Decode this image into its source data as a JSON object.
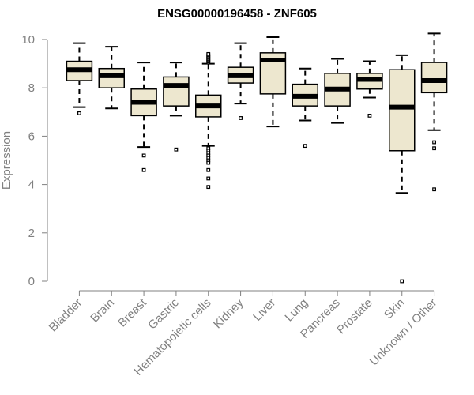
{
  "chart_data": {
    "type": "boxplot",
    "title": "ENSG00000196458 - ZNF605",
    "xlabel": "",
    "ylabel": "Expression",
    "ylim": [
      0,
      10
    ],
    "yticks": [
      0,
      2,
      4,
      6,
      8,
      10
    ],
    "grid": false,
    "colors": {
      "box_fill": "#ede7cf",
      "stroke": "#000000",
      "axis": "#808080",
      "tick_text": "#808080"
    },
    "categories": [
      "Bladder",
      "Brain",
      "Breast",
      "Gastric",
      "Hematopoietic cells",
      "Kidney",
      "Liver",
      "Lung",
      "Pancreas",
      "Prostate",
      "Skin",
      "Unknown / Other"
    ],
    "boxes": [
      {
        "category": "Bladder",
        "whisker_low": 7.2,
        "q1": 8.3,
        "median": 8.75,
        "q3": 9.1,
        "whisker_high": 9.85,
        "outliers": [
          6.95
        ]
      },
      {
        "category": "Brain",
        "whisker_low": 7.15,
        "q1": 8.0,
        "median": 8.5,
        "q3": 8.8,
        "whisker_high": 9.7,
        "outliers": []
      },
      {
        "category": "Breast",
        "whisker_low": 5.55,
        "q1": 6.85,
        "median": 7.4,
        "q3": 7.95,
        "whisker_high": 9.05,
        "outliers": [
          5.2,
          4.6
        ]
      },
      {
        "category": "Gastric",
        "whisker_low": 6.85,
        "q1": 7.25,
        "median": 8.1,
        "q3": 8.45,
        "whisker_high": 9.05,
        "outliers": [
          5.45
        ]
      },
      {
        "category": "Hematopoietic cells",
        "whisker_low": 5.6,
        "q1": 6.8,
        "median": 7.25,
        "q3": 7.7,
        "whisker_high": 9.0,
        "outliers": [
          9.05,
          9.1,
          9.15,
          9.2,
          9.25,
          9.3,
          9.35,
          9.4,
          5.5,
          5.4,
          5.3,
          5.2,
          5.1,
          5.0,
          4.9,
          4.6,
          4.25,
          3.9
        ]
      },
      {
        "category": "Kidney",
        "whisker_low": 7.35,
        "q1": 8.2,
        "median": 8.5,
        "q3": 8.85,
        "whisker_high": 9.85,
        "outliers": [
          6.75
        ]
      },
      {
        "category": "Liver",
        "whisker_low": 6.4,
        "q1": 7.75,
        "median": 9.15,
        "q3": 9.45,
        "whisker_high": 10.1,
        "outliers": []
      },
      {
        "category": "Lung",
        "whisker_low": 6.65,
        "q1": 7.25,
        "median": 7.65,
        "q3": 8.15,
        "whisker_high": 8.8,
        "outliers": [
          5.6
        ]
      },
      {
        "category": "Pancreas",
        "whisker_low": 6.55,
        "q1": 7.25,
        "median": 7.95,
        "q3": 8.6,
        "whisker_high": 9.2,
        "outliers": []
      },
      {
        "category": "Prostate",
        "whisker_low": 7.6,
        "q1": 7.95,
        "median": 8.35,
        "q3": 8.6,
        "whisker_high": 9.1,
        "outliers": [
          6.85
        ]
      },
      {
        "category": "Skin",
        "whisker_low": 3.65,
        "q1": 5.4,
        "median": 7.2,
        "q3": 8.75,
        "whisker_high": 9.35,
        "outliers": [
          0.0
        ]
      },
      {
        "category": "Unknown / Other",
        "whisker_low": 6.25,
        "q1": 7.8,
        "median": 8.3,
        "q3": 9.05,
        "whisker_high": 10.25,
        "outliers": [
          5.75,
          5.5,
          3.8
        ]
      }
    ]
  }
}
